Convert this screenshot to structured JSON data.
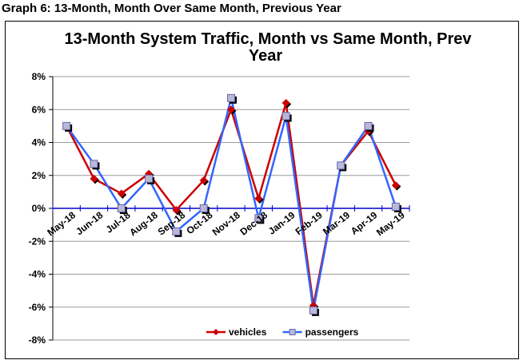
{
  "caption": "Graph 6: 13-Month, Month Over Same Month, Previous Year",
  "chart_data": {
    "type": "line",
    "title_lines": [
      "13-Month System Traffic, Month vs Same Month, Prev",
      "Year"
    ],
    "categories": [
      "May-18",
      "Jun-18",
      "Jul-18",
      "Aug-18",
      "Sep-18",
      "Oct-18",
      "Nov-18",
      "Dec-18",
      "Jan-19",
      "Feb-19",
      "Mar-19",
      "Apr-19",
      "May-19"
    ],
    "series": [
      {
        "name": "vehicles",
        "color": "#cc0000",
        "marker": "diamond",
        "values": [
          5.0,
          1.8,
          0.9,
          2.1,
          -0.1,
          1.7,
          6.0,
          0.6,
          6.4,
          -5.9,
          2.6,
          4.7,
          1.4
        ]
      },
      {
        "name": "passengers",
        "color": "#3366ff",
        "marker": "square",
        "values": [
          5.0,
          2.7,
          0.0,
          1.8,
          -1.4,
          0.0,
          6.7,
          -0.6,
          5.6,
          -6.2,
          2.6,
          5.0,
          0.1
        ]
      }
    ],
    "yticks": [
      "8%",
      "6%",
      "4%",
      "2%",
      "0%",
      "-2%",
      "-4%",
      "-6%",
      "-8%"
    ],
    "ylim": [
      -8,
      8
    ],
    "xlabel": "",
    "ylabel": "",
    "grid": true,
    "legend": "bottom-center"
  }
}
